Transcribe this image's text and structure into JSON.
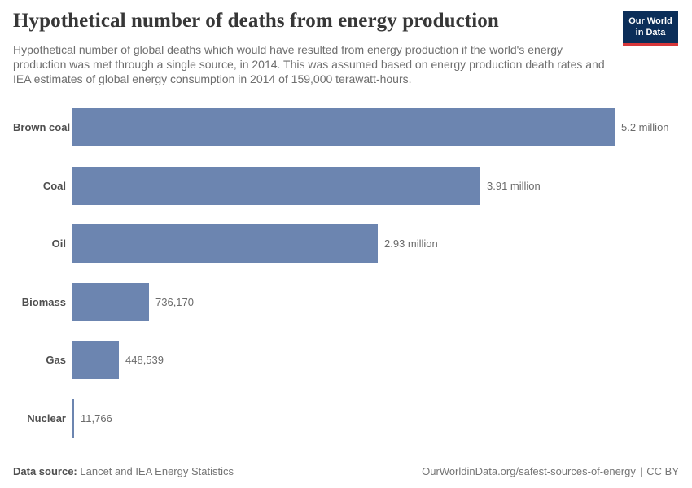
{
  "header": {
    "title": "Hypothetical number of deaths from energy production",
    "subtitle": "Hypothetical number of global deaths which would have resulted from energy production if the world's energy production was met through a single source, in 2014. This was assumed based on energy production death rates and IEA estimates of global energy consumption in 2014 of 159,000 terawatt-hours.",
    "logo": {
      "line1": "Our World",
      "line2": "in Data"
    }
  },
  "chart_data": {
    "type": "bar",
    "orientation": "horizontal",
    "title": "Hypothetical number of deaths from energy production",
    "categories": [
      "Brown coal",
      "Coal",
      "Oil",
      "Biomass",
      "Gas",
      "Nuclear"
    ],
    "values": [
      5200000,
      3910000,
      2930000,
      736170,
      448539,
      11766
    ],
    "value_labels": [
      "5.2 million",
      "3.91 million",
      "2.93 million",
      "736,170",
      "448,539",
      "11,766"
    ],
    "xlabel": "",
    "ylabel": "",
    "xlim": [
      0,
      5200000
    ],
    "grid": false,
    "legend": false,
    "bar_color": "#6c85b0"
  },
  "footer": {
    "datasource_label": "Data source:",
    "datasource_value": "Lancet and IEA Energy Statistics",
    "link": "OurWorldinData.org/safest-sources-of-energy",
    "separator": "|",
    "license": "CC BY"
  },
  "colors": {
    "bar": "#6c85b0",
    "logo_navy": "#0b2e59",
    "logo_red": "#d7373a",
    "axis": "#aeaeae",
    "title_text": "#373737",
    "muted_text": "#6e6e6e"
  }
}
